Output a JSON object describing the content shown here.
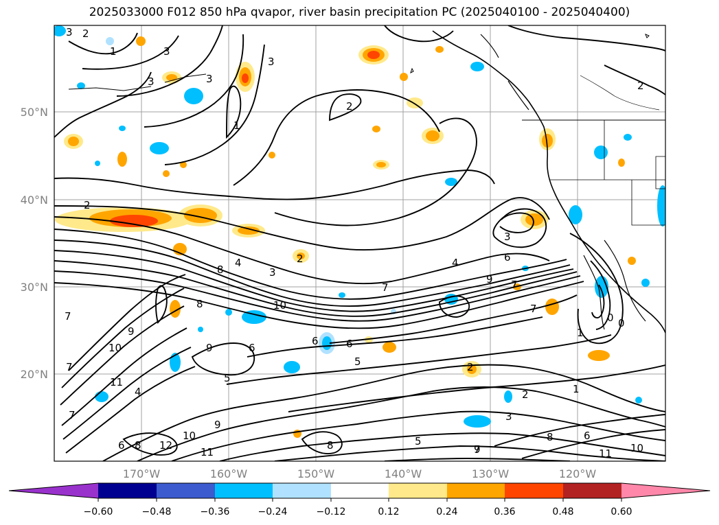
{
  "title": "2025033000 F012 850 hPa qvapor, river basin precipitation PC (2025040100 - 2025040400)",
  "lat_labels": [
    "50°N",
    "40°N",
    "30°N",
    "20°N"
  ],
  "lon_labels": [
    "170°W",
    "160°W",
    "150°W",
    "140°W",
    "130°W",
    "120°W"
  ],
  "colorbar": {
    "ticks": [
      "−0.60",
      "−0.48",
      "−0.36",
      "−0.24",
      "−0.12",
      "0.12",
      "0.24",
      "0.36",
      "0.48",
      "0.60"
    ],
    "colors": {
      "under": "#9932cc",
      "bins": [
        "#000090",
        "#3b5bcf",
        "#00bfff",
        "#b0e2ff",
        "#ffffff",
        "#ffe98a",
        "#ffa500",
        "#ff4500",
        "#b22222"
      ],
      "over": "#ff88aa"
    }
  },
  "contour_labels": [
    "3",
    "2",
    "1",
    "3",
    "3",
    "3",
    "2",
    "1",
    "2",
    "2",
    "3",
    "4",
    "3",
    "3",
    "4",
    "6",
    "7",
    "8",
    "9",
    "10",
    "7",
    "2",
    "7",
    "7",
    "6",
    "6",
    "5",
    "6",
    "7",
    "8",
    "9",
    "10",
    "11",
    "12",
    "11",
    "10",
    "9",
    "9",
    "7",
    "6",
    "5",
    "4",
    "3",
    "2",
    "1",
    "0",
    "0",
    "10",
    "11",
    "8",
    "8",
    "9",
    "7",
    "8",
    "6",
    "5",
    "2",
    "1"
  ]
}
